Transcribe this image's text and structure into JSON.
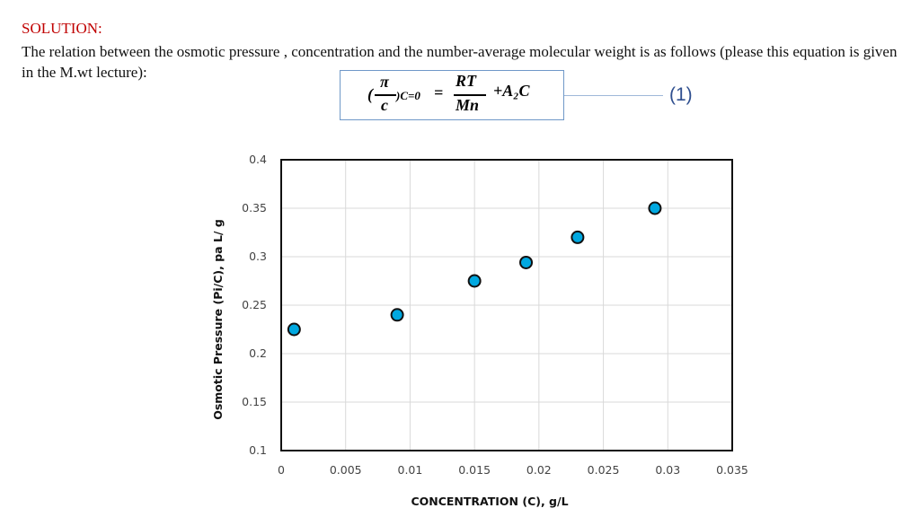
{
  "heading": "SOLUTION:",
  "paragraph": "The relation between the osmotic pressure , concentration and the number-average molecular weight is as follows (please this equation is given in the M.wt lecture):",
  "equation": {
    "open": "(",
    "pi": "π",
    "c": "c",
    "close_sub": ")C=0",
    "equals": "=",
    "RT": "RT",
    "Mn": "Mn",
    "plus_term": "+A₂C",
    "number": "(1)"
  },
  "chart_data": {
    "type": "scatter",
    "xlabel": "CONCENTRATION (C), g/L",
    "ylabel": "Osmotic Pressure  (Pi/C), pa L/ g",
    "xlim": [
      0,
      0.035
    ],
    "ylim": [
      0.1,
      0.4
    ],
    "xticks": [
      "0",
      "0.005",
      "0.01",
      "0.015",
      "0.02",
      "0.025",
      "0.03",
      "0.035"
    ],
    "yticks": [
      "0.1",
      "0.15",
      "0.2",
      "0.25",
      "0.3",
      "0.35",
      "0.4"
    ],
    "grid": true,
    "marker_color": "#00a8e0",
    "points": [
      {
        "x": 0.001,
        "y": 0.225
      },
      {
        "x": 0.009,
        "y": 0.24
      },
      {
        "x": 0.015,
        "y": 0.275
      },
      {
        "x": 0.019,
        "y": 0.294
      },
      {
        "x": 0.023,
        "y": 0.32
      },
      {
        "x": 0.029,
        "y": 0.35
      }
    ]
  }
}
